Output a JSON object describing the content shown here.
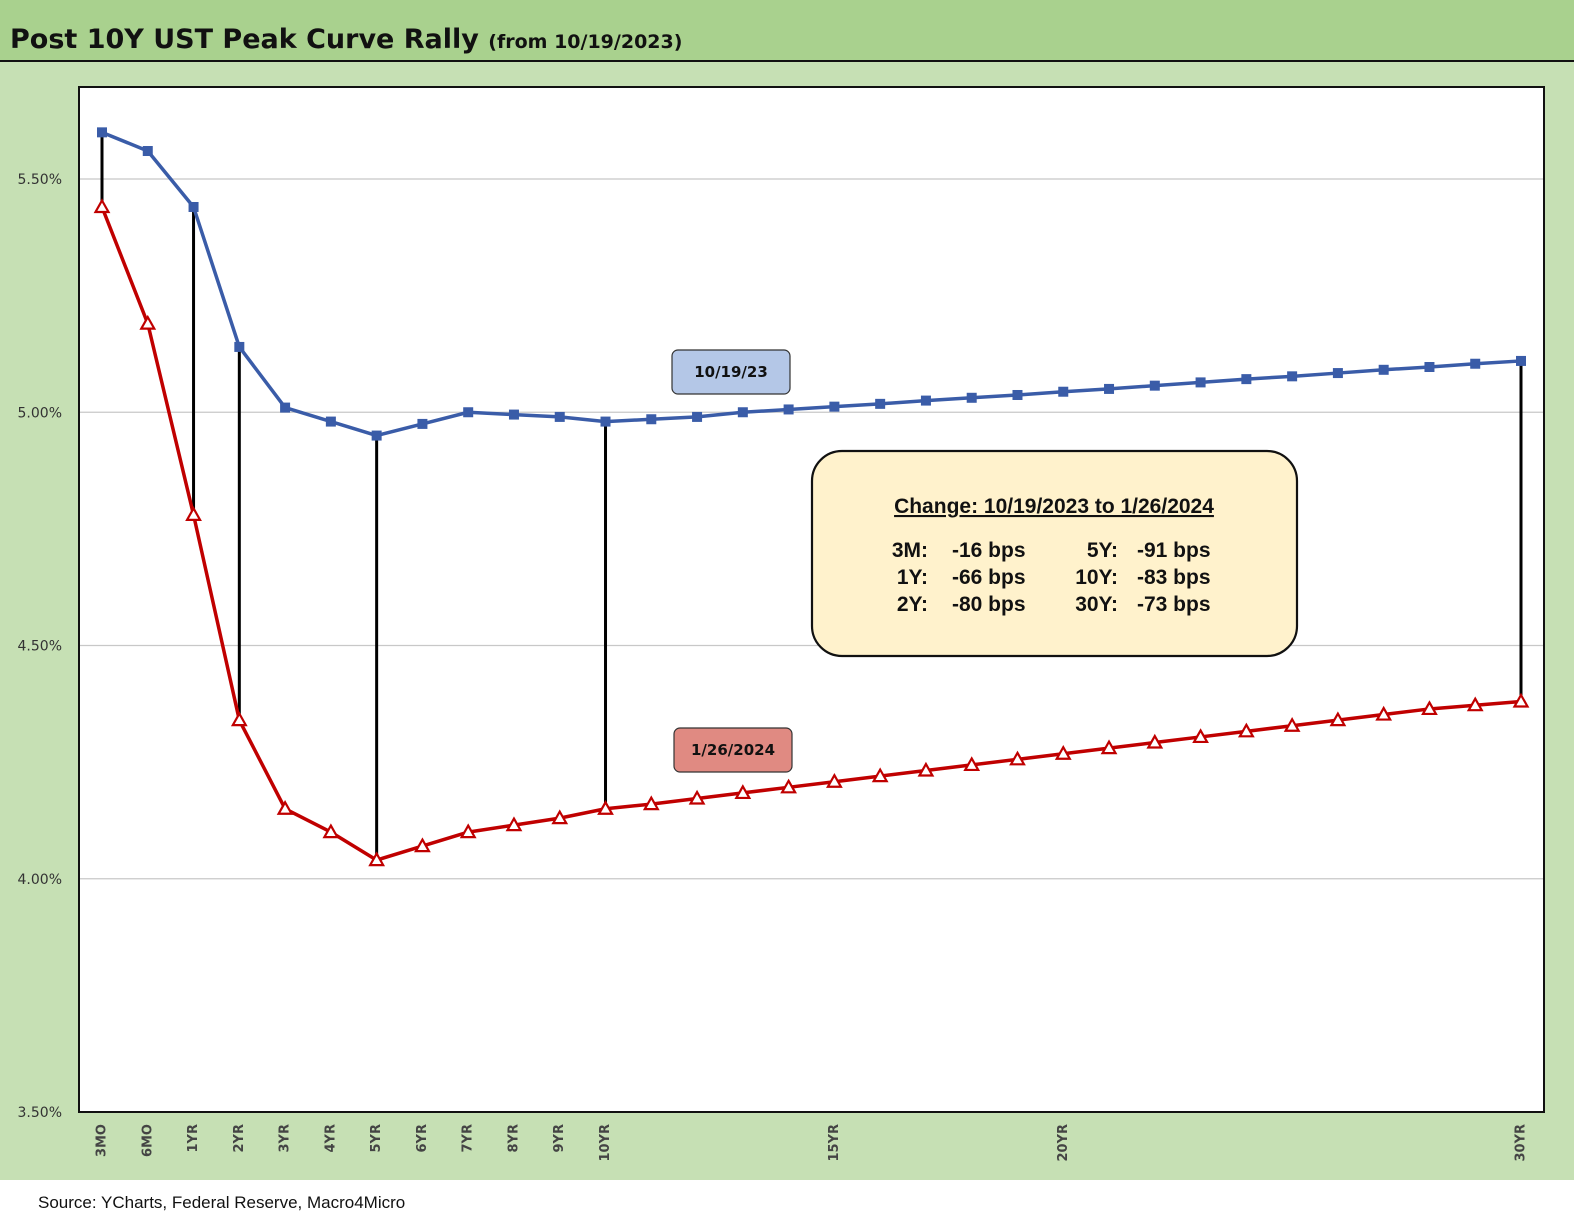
{
  "header": {
    "title": "Post 10Y UST Peak Curve Rally",
    "subtitle": "(from 10/19/2023)"
  },
  "footer": {
    "source": "Source: YCharts, Federal Reserve, Macro4Micro"
  },
  "colors": {
    "series1": "#3a5ca8",
    "series2": "#c00000",
    "label1_bg": "#b4c7e7",
    "label2_bg": "#e08a82",
    "box_bg": "#fff2cc",
    "plot_bg": "#c6e0b4"
  },
  "annotation_box": {
    "title": "Change: 10/19/2023 to 1/26/2024",
    "rows": [
      {
        "a_label": "3M:",
        "a_value": "-16 bps",
        "b_label": "5Y:",
        "b_value": "-91 bps"
      },
      {
        "a_label": "1Y:",
        "a_value": "-66 bps",
        "b_label": "10Y:",
        "b_value": "-83 bps"
      },
      {
        "a_label": "2Y:",
        "a_value": "-80 bps",
        "b_label": "30Y:",
        "b_value": "-73 bps"
      }
    ]
  },
  "chart_data": {
    "type": "line",
    "title": "Post 10Y UST Peak Curve Rally",
    "subtitle": "(from 10/19/2023)",
    "x": [
      0.25,
      0.5,
      1,
      2,
      3,
      4,
      5,
      6,
      7,
      8,
      9,
      10,
      11,
      12,
      13,
      14,
      15,
      16,
      17,
      18,
      19,
      20,
      21,
      22,
      23,
      24,
      25,
      26,
      27,
      28,
      29,
      30
    ],
    "x_tick_labels": [
      {
        "x": 0.25,
        "label": "3MO"
      },
      {
        "x": 0.5,
        "label": "6MO"
      },
      {
        "x": 1,
        "label": "1YR"
      },
      {
        "x": 2,
        "label": "2YR"
      },
      {
        "x": 3,
        "label": "3YR"
      },
      {
        "x": 4,
        "label": "4YR"
      },
      {
        "x": 5,
        "label": "5YR"
      },
      {
        "x": 6,
        "label": "6YR"
      },
      {
        "x": 7,
        "label": "7YR"
      },
      {
        "x": 8,
        "label": "8YR"
      },
      {
        "x": 9,
        "label": "9YR"
      },
      {
        "x": 10,
        "label": "10YR"
      },
      {
        "x": 15,
        "label": "15YR"
      },
      {
        "x": 20,
        "label": "20YR"
      },
      {
        "x": 30,
        "label": "30YR"
      }
    ],
    "y_ticks": [
      {
        "value": 3.5,
        "label": "3.50%"
      },
      {
        "value": 4.0,
        "label": "4.00%"
      },
      {
        "value": 4.5,
        "label": "4.50%"
      },
      {
        "value": 5.0,
        "label": "5.00%"
      },
      {
        "value": 5.5,
        "label": "5.50%"
      }
    ],
    "ylim": [
      3.5,
      5.7
    ],
    "grid": true,
    "series": [
      {
        "name": "10/19/23",
        "marker": "square",
        "values": [
          5.6,
          5.56,
          5.44,
          5.14,
          5.01,
          4.98,
          4.95,
          4.975,
          5.0,
          4.995,
          4.99,
          4.98,
          4.985,
          4.99,
          5.0,
          5.006,
          5.012,
          5.018,
          5.025,
          5.031,
          5.037,
          5.044,
          5.05,
          5.057,
          5.064,
          5.071,
          5.077,
          5.084,
          5.091,
          5.097,
          5.104,
          5.11
        ]
      },
      {
        "name": "1/26/2024",
        "marker": "triangle",
        "values": [
          5.44,
          5.19,
          4.78,
          4.34,
          4.15,
          4.1,
          4.04,
          4.07,
          4.1,
          4.115,
          4.13,
          4.15,
          4.16,
          4.172,
          4.184,
          4.196,
          4.208,
          4.22,
          4.232,
          4.244,
          4.256,
          4.268,
          4.28,
          4.292,
          4.304,
          4.316,
          4.328,
          4.34,
          4.352,
          4.364,
          4.372,
          4.38
        ]
      }
    ],
    "connector_x": [
      0.25,
      1,
      2,
      5,
      10,
      30
    ]
  }
}
